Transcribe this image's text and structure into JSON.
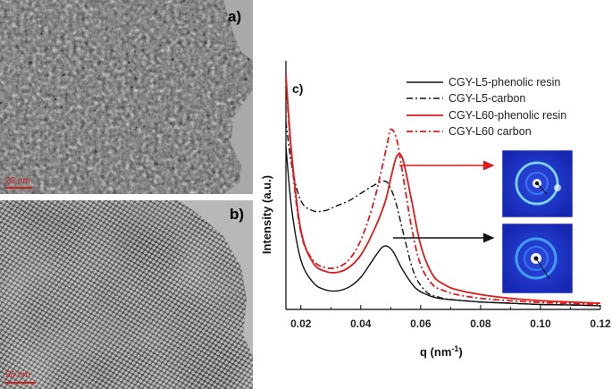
{
  "panels": {
    "a": {
      "letter": "a)",
      "scalebar": "20 nm"
    },
    "b": {
      "letter": "b)",
      "scalebar": "50 nm"
    },
    "c": {
      "letter": "c)"
    }
  },
  "colors": {
    "black": "#111111",
    "red": "#e0191b",
    "saxs_bg": "#1a2fc8"
  },
  "chart_data": {
    "type": "line",
    "title": "",
    "xlabel": "q (nm",
    "xlabel_sup": "-1",
    "xlabel_close": ")",
    "ylabel": "Intensity (a.u.)",
    "xlim": [
      0.015,
      0.12
    ],
    "ylim": [
      0,
      1.0
    ],
    "xticks": [
      "0.02",
      "0.04",
      "0.06",
      "0.08",
      "0.10",
      "0.12"
    ],
    "xtick_values": [
      0.02,
      0.04,
      0.06,
      0.08,
      0.1,
      0.12
    ],
    "grid": false,
    "legend_position": "top-right",
    "series": [
      {
        "name": "CGY-L5-phenolic resin",
        "color": "#111111",
        "dash": "solid",
        "x": [
          0.015,
          0.017,
          0.02,
          0.024,
          0.028,
          0.032,
          0.036,
          0.04,
          0.044,
          0.047,
          0.049,
          0.051,
          0.054,
          0.058,
          0.062,
          0.066,
          0.07,
          0.08,
          0.09,
          0.1,
          0.11,
          0.12
        ],
        "y": [
          0.66,
          0.4,
          0.2,
          0.11,
          0.08,
          0.075,
          0.09,
          0.13,
          0.2,
          0.25,
          0.255,
          0.23,
          0.16,
          0.09,
          0.06,
          0.045,
          0.04,
          0.03,
          0.025,
          0.02,
          0.018,
          0.015
        ]
      },
      {
        "name": "CGY-L5-carbon",
        "color": "#111111",
        "dash": "dashdot",
        "x": [
          0.015,
          0.017,
          0.02,
          0.024,
          0.028,
          0.032,
          0.036,
          0.04,
          0.044,
          0.048,
          0.05,
          0.052,
          0.055,
          0.058,
          0.062,
          0.066,
          0.07,
          0.08,
          0.09,
          0.1,
          0.11,
          0.12
        ],
        "y": [
          0.76,
          0.58,
          0.44,
          0.4,
          0.4,
          0.42,
          0.44,
          0.47,
          0.5,
          0.52,
          0.49,
          0.42,
          0.27,
          0.14,
          0.07,
          0.05,
          0.04,
          0.03,
          0.025,
          0.02,
          0.018,
          0.015
        ]
      },
      {
        "name": "CGY-L60-phenolic resin",
        "color": "#e0191b",
        "dash": "solid",
        "x": [
          0.015,
          0.017,
          0.02,
          0.024,
          0.028,
          0.032,
          0.036,
          0.04,
          0.044,
          0.048,
          0.05,
          0.052,
          0.054,
          0.057,
          0.06,
          0.064,
          0.068,
          0.072,
          0.08,
          0.09,
          0.1,
          0.11,
          0.12
        ],
        "y": [
          0.95,
          0.62,
          0.32,
          0.19,
          0.155,
          0.15,
          0.17,
          0.22,
          0.31,
          0.43,
          0.53,
          0.62,
          0.61,
          0.44,
          0.26,
          0.14,
          0.1,
          0.08,
          0.06,
          0.045,
          0.035,
          0.03,
          0.025
        ]
      },
      {
        "name": "CGY-L60 carbon",
        "color": "#e0191b",
        "dash": "dashdot",
        "x": [
          0.015,
          0.017,
          0.02,
          0.024,
          0.028,
          0.032,
          0.036,
          0.04,
          0.044,
          0.047,
          0.049,
          0.05,
          0.052,
          0.054,
          0.057,
          0.06,
          0.064,
          0.068,
          0.072,
          0.08,
          0.09,
          0.1,
          0.11,
          0.12
        ],
        "y": [
          0.93,
          0.6,
          0.31,
          0.2,
          0.17,
          0.17,
          0.2,
          0.28,
          0.42,
          0.57,
          0.68,
          0.73,
          0.69,
          0.55,
          0.33,
          0.18,
          0.1,
          0.075,
          0.06,
          0.045,
          0.035,
          0.028,
          0.024,
          0.02
        ]
      }
    ],
    "annotations": [
      {
        "type": "arrow",
        "series": "CGY-L60-phenolic resin",
        "target": "SAXS pattern (top)"
      },
      {
        "type": "arrow",
        "series": "CGY-L5-phenolic resin",
        "target": "SAXS pattern (bottom)"
      }
    ]
  }
}
